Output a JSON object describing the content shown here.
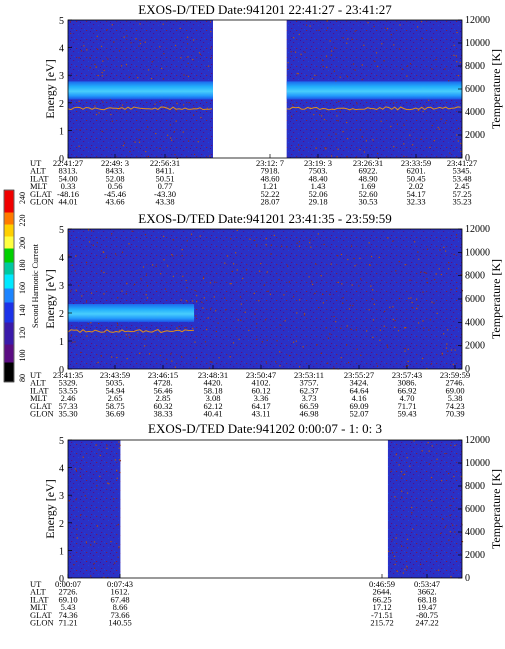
{
  "chart_data": {
    "type": "heatmap",
    "colorbar": {
      "title": "Second Harmonic Current",
      "ticks": [
        "80",
        "100",
        "120",
        "140",
        "160",
        "180",
        "200",
        "220",
        "240"
      ]
    },
    "panels": [
      {
        "title": "EXOS-D/TED   Date:941201  22:41:27 - 23:41:27",
        "ylabel": "Energy [eV]",
        "ylabel_right": "Temperature [K]",
        "yticks": [
          "0",
          "1",
          "2",
          "3",
          "4",
          "5"
        ],
        "yticks_right": [
          "0",
          "2000",
          "4000",
          "6000",
          "8000",
          "10000",
          "12000"
        ],
        "data_segments": [
          [
            0.0,
            0.368
          ],
          [
            0.555,
            1.0
          ]
        ],
        "band_energy": 2.45,
        "row_labels": [
          "UT",
          "ALT",
          "ILAT",
          "MLT",
          "GLAT",
          "GLON"
        ],
        "columns": [
          [
            "22:41:27",
            "8313.",
            "54.00",
            "0.33",
            "-48.16",
            "44.01"
          ],
          [
            "22:49: 3",
            "8433.",
            "52.08",
            "0.56",
            "-45.46",
            "43.66"
          ],
          [
            "22:56:31",
            "8411.",
            "50.51",
            "0.77",
            "-43.30",
            "43.38"
          ],
          [
            "23:12: 7",
            "7918.",
            "48.60",
            "1.21",
            "52.22",
            "28.07"
          ],
          [
            "23:19: 3",
            "7503.",
            "48.40",
            "1.43",
            "52.06",
            "29.18"
          ],
          [
            "23:26:31",
            "6922.",
            "48.90",
            "1.69",
            "52.60",
            "30.53"
          ],
          [
            "23:33:59",
            "6201.",
            "50.45",
            "2.02",
            "54.17",
            "32.33"
          ],
          [
            "23:41:27",
            "5345.",
            "53.48",
            "2.45",
            "57.25",
            "35.23"
          ]
        ]
      },
      {
        "title": "EXOS-D/TED   Date:941201  23:41:35 - 23:59:59",
        "ylabel": "Energy [eV]",
        "ylabel_right": "Temperature [K]",
        "yticks": [
          "0",
          "1",
          "2",
          "3",
          "4",
          "5"
        ],
        "yticks_right": [
          "0",
          "2000",
          "4000",
          "6000",
          "8000",
          "10000",
          "12000"
        ],
        "data_segments": [
          [
            0.0,
            1.0
          ]
        ],
        "band_energy": 2.0,
        "row_labels": [
          "UT",
          "ALT",
          "ILAT",
          "MLT",
          "GLAT",
          "GLON"
        ],
        "columns": [
          [
            "23:41:35",
            "5329.",
            "53.55",
            "2.46",
            "57.33",
            "35.30"
          ],
          [
            "23:43:59",
            "5035.",
            "54.94",
            "2.65",
            "58.75",
            "36.69"
          ],
          [
            "23:46:15",
            "4728.",
            "56.46",
            "2.85",
            "60.32",
            "38.33"
          ],
          [
            "23:48:31",
            "4420.",
            "58.18",
            "3.08",
            "62.12",
            "40.41"
          ],
          [
            "23:50:47",
            "4102.",
            "60.12",
            "3.36",
            "64.17",
            "43.11"
          ],
          [
            "23:53:11",
            "3757.",
            "62.37",
            "3.73",
            "66.59",
            "46.98"
          ],
          [
            "23:55:27",
            "3424.",
            "64.64",
            "4.16",
            "69.09",
            "52.07"
          ],
          [
            "23:57:43",
            "3086.",
            "66.92",
            "4.70",
            "71.71",
            "59.43"
          ],
          [
            "23:59:59",
            "2746.",
            "69.00",
            "5.38",
            "74.23",
            "70.39"
          ]
        ]
      },
      {
        "title": "EXOS-D/TED   Date:941202  0:00:07 - 1: 0: 3",
        "ylabel": "Energy [eV]",
        "ylabel_right": "Temperature [K]",
        "yticks": [
          "0",
          "1",
          "2",
          "3",
          "4",
          "5"
        ],
        "yticks_right": [
          "0",
          "2000",
          "4000",
          "6000",
          "8000",
          "10000",
          "12000"
        ],
        "data_segments": [
          [
            0.0,
            0.133
          ],
          [
            0.812,
            1.0
          ]
        ],
        "band_energy": null,
        "row_labels": [
          "UT",
          "ALT",
          "ILAT",
          "MLT",
          "GLAT",
          "GLON"
        ],
        "columns": [
          [
            "0:00:07",
            "2726.",
            "69.10",
            "5.43",
            "74.36",
            "71.21"
          ],
          [
            "0:07:43",
            "1612.",
            "67.48",
            "8.66",
            "73.66",
            "140.55"
          ],
          [
            "0:46:59",
            "2644.",
            "66.25",
            "17.12",
            "-71.51",
            "215.72"
          ],
          [
            "0:53:47",
            "3662.",
            "68.18",
            "19.47",
            "-80.75",
            "247.22"
          ]
        ]
      }
    ]
  }
}
